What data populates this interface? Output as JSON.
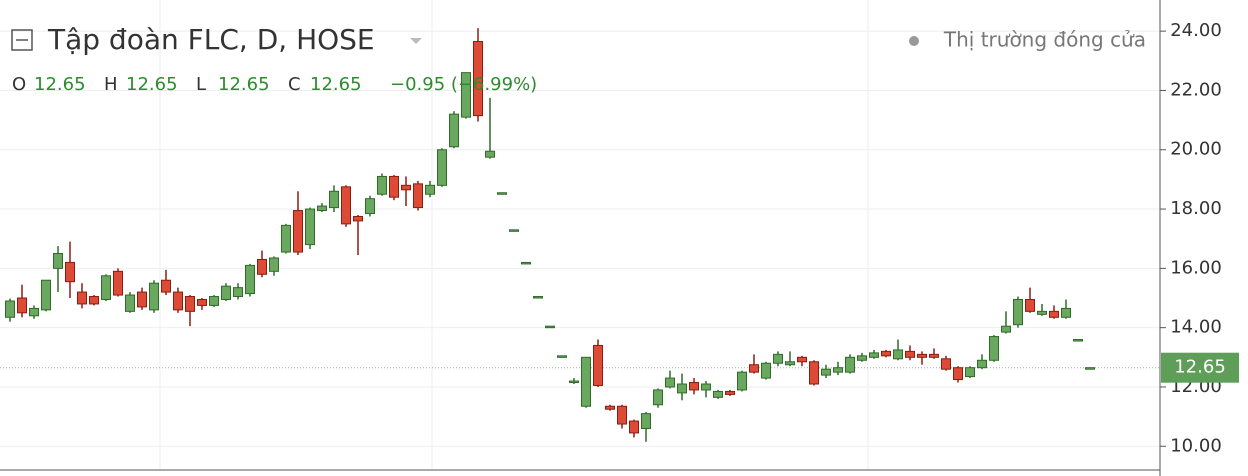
{
  "chart_data": {
    "type": "candlestick",
    "title": "Tập đoàn FLC, D, HOSE",
    "status": "Thị trường đóng cửa",
    "legend_items": [
      {
        "key": "O",
        "value": 12.65
      },
      {
        "key": "H",
        "value": 12.65
      },
      {
        "key": "L",
        "value": 12.65
      },
      {
        "key": "C",
        "value": 12.65
      }
    ],
    "change": "−0.95 (−6.99%)",
    "up_color": "#6aa860",
    "up_border": "#2f6b2a",
    "down_color": "#dd4a36",
    "down_border": "#8a1d12",
    "categories": [
      null,
      null,
      null,
      null,
      null,
      null,
      null,
      null,
      null,
      null,
      null,
      null,
      null,
      null,
      null,
      null,
      null,
      null,
      null,
      null,
      null,
      null,
      null,
      null,
      null,
      null,
      null,
      null,
      null,
      null,
      null,
      null,
      null,
      null,
      null,
      null,
      null,
      null,
      null,
      null,
      null,
      null,
      null,
      null,
      null,
      null,
      null,
      null,
      null,
      null,
      null,
      null,
      null,
      null,
      null,
      null,
      null,
      null,
      null,
      null,
      null,
      null,
      null,
      null,
      null,
      null,
      null,
      null,
      null,
      null,
      null,
      null,
      null,
      null,
      null,
      null,
      null,
      null,
      null,
      null,
      null,
      null,
      null,
      null,
      null,
      null,
      null,
      null,
      null,
      null,
      null
    ],
    "open": [
      14.35,
      15.0,
      14.4,
      14.6,
      16.0,
      16.2,
      15.2,
      15.05,
      14.95,
      15.9,
      14.55,
      15.2,
      14.6,
      15.6,
      15.2,
      15.05,
      14.95,
      14.75,
      14.95,
      15.05,
      15.15,
      16.3,
      15.9,
      16.55,
      17.95,
      16.8,
      17.95,
      18.05,
      18.75,
      17.75,
      17.85,
      18.5,
      19.1,
      18.8,
      18.85,
      18.5,
      18.8,
      20.1,
      21.1,
      23.65,
      19.75,
      18.55,
      17.3,
      16.2,
      15.05,
      14.05,
      13.05,
      12.15,
      11.35,
      13.4,
      11.35,
      11.35,
      10.85,
      10.6,
      11.4,
      12.0,
      11.8,
      12.15,
      11.9,
      11.65,
      11.85,
      11.9,
      12.75,
      12.3,
      12.8,
      12.75,
      13.0,
      12.85,
      12.4,
      12.5,
      12.5,
      12.9,
      13.0,
      13.2,
      12.95,
      13.2,
      13.1,
      13.1,
      12.95,
      12.65,
      12.35,
      12.65,
      12.9,
      13.85,
      14.1,
      14.95,
      14.45,
      14.55,
      14.35,
      13.6,
      12.65
    ],
    "high": [
      14.98,
      15.45,
      14.75,
      15.6,
      16.75,
      16.9,
      15.5,
      15.1,
      15.8,
      16.0,
      15.2,
      15.35,
      15.6,
      15.95,
      15.35,
      15.1,
      15.0,
      15.1,
      15.5,
      15.5,
      16.15,
      16.6,
      16.4,
      17.5,
      18.6,
      18.05,
      18.2,
      18.8,
      18.8,
      17.8,
      18.45,
      19.2,
      19.15,
      19.1,
      18.95,
      18.95,
      20.05,
      21.3,
      22.6,
      24.1,
      21.75,
      18.55,
      17.3,
      16.2,
      15.05,
      14.05,
      13.05,
      12.3,
      13.0,
      13.6,
      11.4,
      11.4,
      10.9,
      11.15,
      11.95,
      12.55,
      12.45,
      12.3,
      12.2,
      11.9,
      11.9,
      12.55,
      13.1,
      12.85,
      13.2,
      13.2,
      13.05,
      12.9,
      12.75,
      12.85,
      13.1,
      13.15,
      13.25,
      13.25,
      13.6,
      13.4,
      13.2,
      13.3,
      13.05,
      12.7,
      12.7,
      13.1,
      13.75,
      14.55,
      15.05,
      15.35,
      14.8,
      14.75,
      14.95,
      13.6,
      12.65
    ],
    "low": [
      14.2,
      14.35,
      14.3,
      14.55,
      15.2,
      15.0,
      14.65,
      14.75,
      14.9,
      15.05,
      14.5,
      14.6,
      14.5,
      15.1,
      14.5,
      14.05,
      14.6,
      14.7,
      14.9,
      14.95,
      15.05,
      15.7,
      15.75,
      16.5,
      16.45,
      16.65,
      17.9,
      17.9,
      17.4,
      16.45,
      17.75,
      18.45,
      18.3,
      18.1,
      17.95,
      18.4,
      18.75,
      20.05,
      21.05,
      20.95,
      19.7,
      18.55,
      17.3,
      16.2,
      15.05,
      14.05,
      13.05,
      12.1,
      11.3,
      12.0,
      11.2,
      10.6,
      10.3,
      10.15,
      11.3,
      11.95,
      11.55,
      11.75,
      11.65,
      11.6,
      11.7,
      11.85,
      12.45,
      12.25,
      12.7,
      12.7,
      12.7,
      12.05,
      12.3,
      12.4,
      12.45,
      12.85,
      12.95,
      13.0,
      12.9,
      12.9,
      12.75,
      12.95,
      12.55,
      12.15,
      12.3,
      12.6,
      12.85,
      13.8,
      14.0,
      14.5,
      14.4,
      14.3,
      14.3,
      13.6,
      12.65
    ],
    "close": [
      14.9,
      14.5,
      14.65,
      15.6,
      16.5,
      15.55,
      14.8,
      14.8,
      15.75,
      15.1,
      15.1,
      14.7,
      15.5,
      15.2,
      14.6,
      14.55,
      14.75,
      15.05,
      15.4,
      15.35,
      16.1,
      15.8,
      16.35,
      17.45,
      16.55,
      18.0,
      18.1,
      18.6,
      17.5,
      17.6,
      18.35,
      19.1,
      18.4,
      18.65,
      18.05,
      18.8,
      20.0,
      21.2,
      22.6,
      21.15,
      19.95,
      18.55,
      17.3,
      16.2,
      15.05,
      14.05,
      13.05,
      12.2,
      13.0,
      12.05,
      11.25,
      10.75,
      10.45,
      11.1,
      11.9,
      12.3,
      12.1,
      11.9,
      12.1,
      11.85,
      11.75,
      12.5,
      12.5,
      12.8,
      13.1,
      12.85,
      12.85,
      12.1,
      12.6,
      12.65,
      13.0,
      13.05,
      13.15,
      13.05,
      13.25,
      13.0,
      13.0,
      13.0,
      12.6,
      12.25,
      12.65,
      12.9,
      13.7,
      14.05,
      14.95,
      14.55,
      14.55,
      14.35,
      14.65,
      13.6,
      12.65
    ],
    "ylim": [
      9.2,
      25.05
    ],
    "yticks": [
      {
        "value": 10,
        "label": "10.00"
      },
      {
        "value": 12,
        "label": "12.00"
      },
      {
        "value": 14,
        "label": "14.00"
      },
      {
        "value": 16,
        "label": "16.00"
      },
      {
        "value": 18,
        "label": "18.00"
      },
      {
        "value": 20,
        "label": "20.00"
      },
      {
        "value": 22,
        "label": "22.00"
      },
      {
        "value": 24,
        "label": "24.00"
      }
    ],
    "grid": true,
    "last_price": 12.65,
    "last_price_color": "#5e9e58"
  }
}
